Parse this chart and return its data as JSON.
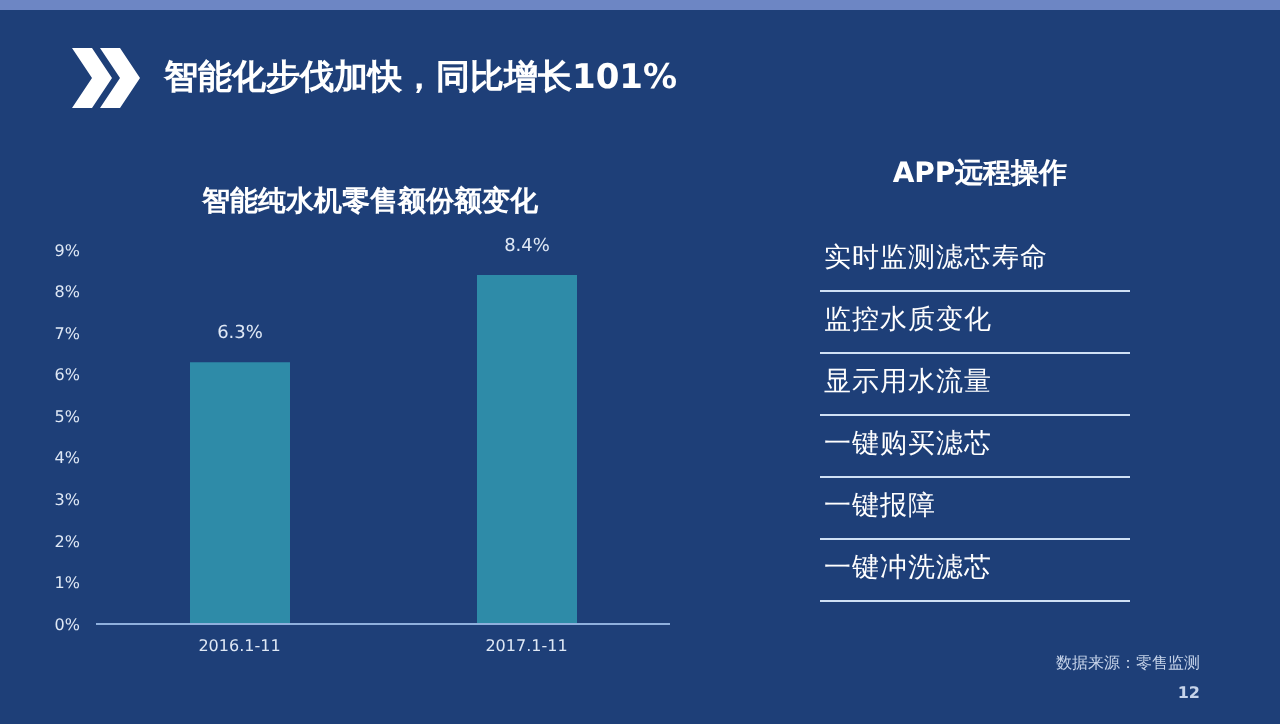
{
  "chart_data": {
    "type": "bar",
    "title": "智能纯水机零售额份额变化",
    "categories": [
      "2016.1-11",
      "2017.1-11"
    ],
    "values": [
      6.3,
      8.4
    ],
    "value_labels": [
      "6.3%",
      "8.4%"
    ],
    "color": "#2e8ba8",
    "ylim": [
      0,
      9
    ],
    "yticks": [
      {
        "value": 0,
        "label": "0%"
      },
      {
        "value": 1,
        "label": "1%"
      },
      {
        "value": 2,
        "label": "2%"
      },
      {
        "value": 3,
        "label": "3%"
      },
      {
        "value": 4,
        "label": "4%"
      },
      {
        "value": 5,
        "label": "5%"
      },
      {
        "value": 6,
        "label": "6%"
      },
      {
        "value": 7,
        "label": "7%"
      },
      {
        "value": 8,
        "label": "8%"
      },
      {
        "value": 9,
        "label": "9%"
      }
    ],
    "grid": false,
    "legend": false,
    "annotations": [
      "智能化步伐加快，同比增长101%",
      "APP远程操作",
      "实时监测滤芯寿命",
      "监控水质变化",
      "显示用水流量",
      "一键购买滤芯",
      "一键报障",
      "一键冲洗滤芯",
      "数据来源：零售监测",
      "12"
    ]
  }
}
